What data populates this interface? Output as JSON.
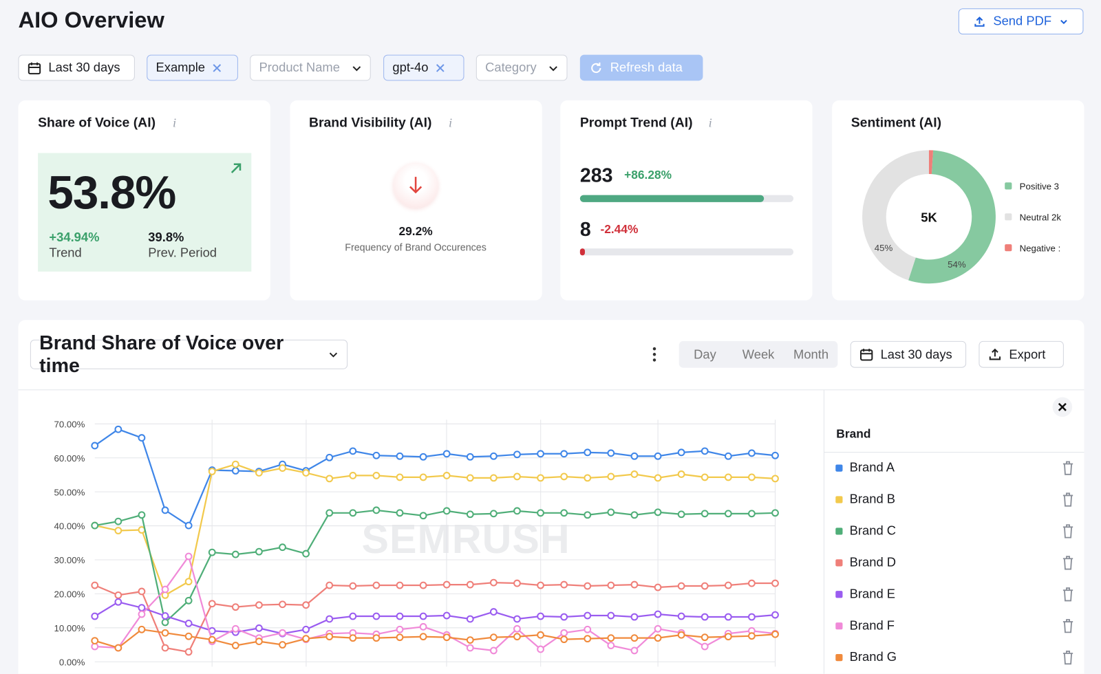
{
  "header": {
    "title": "AIO Overview",
    "send_pdf": "Send PDF"
  },
  "filters": {
    "date": "Last 30 days",
    "example": "Example",
    "product": "Product Name",
    "model": "gpt-4o",
    "category": "Category",
    "refresh": "Refresh data"
  },
  "cards": {
    "share_of_voice": {
      "title": "Share of Voice (AI)",
      "info": "i",
      "value": "53.8%",
      "trend": "+34.94%",
      "trend_label": "Trend",
      "prev": "39.8%",
      "prev_label": "Prev. Period"
    },
    "brand_visibility": {
      "title": "Brand Visibility (AI)",
      "info": "i",
      "value": "29.2%",
      "caption": "Frequency of Brand Occurences"
    },
    "prompt_trend": {
      "title": "Prompt Trend (AI)",
      "info": "i",
      "rows": [
        {
          "value": 283,
          "change": "+86.28%"
        },
        {
          "value": 8,
          "change": "-2.44%"
        }
      ]
    }
  },
  "panel": {
    "modes": [
      "Day",
      "Week",
      "Month"
    ],
    "period": "Last 30 days",
    "export": "Export",
    "watermark": "SEMRUSH",
    "legend_title": "Brand"
  },
  "chart_data": [
    {
      "type": "line",
      "title": "Brand Share of Voice over time",
      "categories": [
        null,
        null,
        null,
        null,
        null,
        null,
        null,
        null,
        null,
        null,
        null,
        null,
        null,
        null,
        null,
        null,
        null,
        null,
        null,
        null,
        null,
        null,
        null,
        null,
        null,
        null,
        null,
        null,
        null,
        null
      ],
      "ylim": [
        0,
        70
      ],
      "yticks": [
        {
          "value": 0,
          "label": "0.00%"
        },
        {
          "value": 10,
          "label": "10.00%"
        },
        {
          "value": 20,
          "label": "20.00%"
        },
        {
          "value": 30,
          "label": "30.00%"
        },
        {
          "value": 40,
          "label": "40.00%"
        },
        {
          "value": 50,
          "label": "50.00%"
        },
        {
          "value": 60,
          "label": "60.00%"
        },
        {
          "value": 70,
          "label": "70.00%"
        }
      ],
      "grid": true,
      "series": [
        {
          "name": "Brand A",
          "color": "#3f86e8",
          "values": [
            63.6,
            68.4,
            65.9,
            44.6,
            40.1,
            56.4,
            56.2,
            56.0,
            58.1,
            56.2,
            60.1,
            62.0,
            60.7,
            60.5,
            60.3,
            61.2,
            60.3,
            60.5,
            61.0,
            61.2,
            61.2,
            61.6,
            61.4,
            60.5,
            60.5,
            61.6,
            62.0,
            60.5,
            61.4,
            60.7
          ]
        },
        {
          "name": "Brand B",
          "color": "#f2c94c",
          "values": [
            40.1,
            38.6,
            38.8,
            19.6,
            23.6,
            56.0,
            58.1,
            55.6,
            57.0,
            55.6,
            53.9,
            54.8,
            54.8,
            54.3,
            54.3,
            54.8,
            54.1,
            54.1,
            54.5,
            54.1,
            54.5,
            54.1,
            54.5,
            55.2,
            54.1,
            55.2,
            54.3,
            54.3,
            54.3,
            53.9
          ]
        },
        {
          "name": "Brand C",
          "color": "#4fae78",
          "values": [
            40.1,
            41.3,
            43.2,
            11.6,
            18.0,
            32.2,
            31.6,
            32.4,
            33.7,
            31.8,
            43.8,
            43.8,
            44.6,
            43.8,
            43.0,
            44.4,
            43.4,
            43.6,
            44.4,
            43.8,
            43.8,
            43.2,
            44.0,
            43.2,
            44.0,
            43.4,
            43.6,
            43.6,
            43.6,
            43.8
          ]
        },
        {
          "name": "Brand D",
          "color": "#ef7f79",
          "values": [
            22.5,
            19.6,
            20.7,
            4.1,
            2.9,
            17.1,
            16.1,
            16.7,
            16.9,
            16.7,
            22.5,
            22.3,
            22.5,
            22.5,
            22.5,
            22.7,
            22.7,
            23.3,
            23.1,
            22.5,
            22.7,
            22.3,
            22.5,
            22.7,
            21.9,
            22.3,
            22.3,
            22.5,
            23.1,
            23.1
          ]
        },
        {
          "name": "Brand E",
          "color": "#9a5cf0",
          "values": [
            13.4,
            17.6,
            15.9,
            13.5,
            11.3,
            9.1,
            8.7,
            9.9,
            8.3,
            9.5,
            12.6,
            13.4,
            13.4,
            13.4,
            13.4,
            13.6,
            12.6,
            14.7,
            12.6,
            13.4,
            13.2,
            13.6,
            13.6,
            13.2,
            14.0,
            13.4,
            13.2,
            13.2,
            13.2,
            13.8
          ]
        },
        {
          "name": "Brand F",
          "color": "#f08ad8",
          "values": [
            4.5,
            4.1,
            14.0,
            21.3,
            31.0,
            6.0,
            9.7,
            7.0,
            8.5,
            6.6,
            8.3,
            8.5,
            8.1,
            9.5,
            10.3,
            7.9,
            4.1,
            3.3,
            9.7,
            3.7,
            8.5,
            9.5,
            4.8,
            3.3,
            9.7,
            8.5,
            4.5,
            8.3,
            9.1,
            8.3
          ]
        },
        {
          "name": "Brand G",
          "color": "#f08a3c",
          "values": [
            6.2,
            4.1,
            9.5,
            8.5,
            7.5,
            6.5,
            4.8,
            6.0,
            5.0,
            6.8,
            7.4,
            7.0,
            7.0,
            7.2,
            7.4,
            7.2,
            6.4,
            7.2,
            7.4,
            7.9,
            6.6,
            6.8,
            7.0,
            7.0,
            7.0,
            7.9,
            7.2,
            7.4,
            7.6,
            8.1
          ]
        }
      ]
    },
    {
      "type": "pie",
      "title": "Sentiment (AI)",
      "center_label": "5K",
      "categories": [
        "Positive 3",
        "Neutral 2k",
        "Negative :"
      ],
      "values": [
        54,
        45,
        1
      ],
      "value_labels": [
        "54%",
        "45%",
        null
      ],
      "colors": [
        "#86c9a0",
        "#e2e2e2",
        "#ef7f79"
      ]
    }
  ]
}
